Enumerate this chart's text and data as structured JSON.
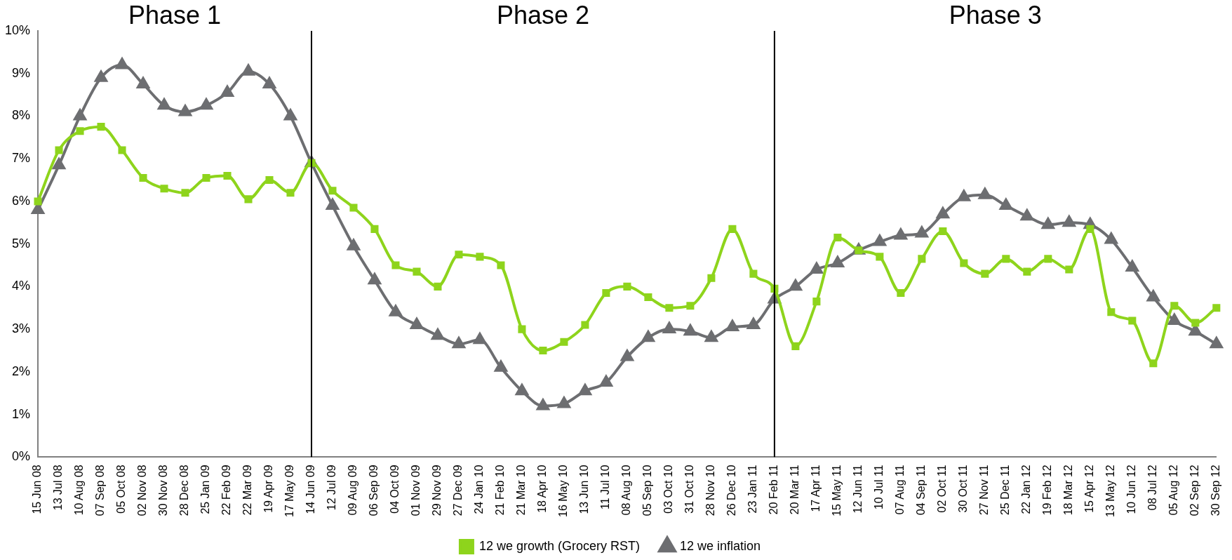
{
  "chart_data": {
    "type": "line",
    "categories": [
      "15 Jun 08",
      "13 Jul 08",
      "10 Aug 08",
      "07 Sep 08",
      "05 Oct 08",
      "02 Nov 08",
      "30 Nov 08",
      "28 Dec 08",
      "25 Jan 09",
      "22 Feb 09",
      "22 Mar 09",
      "19 Apr 09",
      "17 May 09",
      "14 Jun 09",
      "12 Jul 09",
      "09 Aug 09",
      "06 Sep 09",
      "04 Oct 09",
      "01 Nov 09",
      "29 Nov 09",
      "27 Dec 09",
      "24 Jan 10",
      "21 Feb 10",
      "21 Mar 10",
      "18 Apr 10",
      "16 May 10",
      "13 Jun 10",
      "11 Jul 10",
      "08 Aug 10",
      "05 Sep 10",
      "03 Oct 10",
      "31 Oct 10",
      "28 Nov 10",
      "26 Dec 10",
      "23 Jan 11",
      "20 Feb 11",
      "20 Mar 11",
      "17 Apr 11",
      "15 May 11",
      "12 Jun 11",
      "10 Jul 11",
      "07 Aug 11",
      "04 Sep 11",
      "02 Oct 11",
      "30 Oct 11",
      "27 Nov 11",
      "25 Dec 11",
      "22 Jan 12",
      "19 Feb 12",
      "18 Mar 12",
      "15 Apr 12",
      "13 May 12",
      "10 Jun 12",
      "08 Jul 12",
      "05 Aug 12",
      "02 Sep 12",
      "30 Sep 12"
    ],
    "series": [
      {
        "name": "12 we growth (Grocery RST)",
        "color": "#8ed41c",
        "marker": "square",
        "values": [
          6.0,
          7.2,
          7.65,
          7.75,
          7.2,
          6.55,
          6.3,
          6.2,
          6.55,
          6.6,
          6.05,
          6.5,
          6.2,
          6.9,
          6.25,
          5.85,
          5.35,
          4.5,
          4.35,
          4.0,
          4.75,
          4.7,
          4.5,
          3.0,
          2.5,
          2.7,
          3.1,
          3.85,
          4.0,
          3.75,
          3.5,
          3.55,
          4.2,
          5.35,
          4.3,
          3.95,
          2.6,
          3.65,
          5.15,
          4.85,
          4.7,
          3.85,
          4.65,
          5.3,
          4.55,
          4.3,
          4.65,
          4.35,
          4.65,
          4.4,
          5.35,
          3.4,
          3.2,
          2.2,
          3.55,
          3.15,
          3.5
        ]
      },
      {
        "name": "12 we inflation",
        "color": "#6d6e71",
        "marker": "triangle",
        "values": [
          5.8,
          6.85,
          8.0,
          8.9,
          9.2,
          8.75,
          8.25,
          8.1,
          8.25,
          8.55,
          9.05,
          8.75,
          8.0,
          6.9,
          5.9,
          4.95,
          4.15,
          3.4,
          3.1,
          2.85,
          2.65,
          2.75,
          2.1,
          1.55,
          1.2,
          1.25,
          1.55,
          1.75,
          2.35,
          2.8,
          3.0,
          2.95,
          2.8,
          3.05,
          3.1,
          3.7,
          4.0,
          4.4,
          4.55,
          4.85,
          5.05,
          5.2,
          5.25,
          5.7,
          6.1,
          6.15,
          5.9,
          5.65,
          5.45,
          5.5,
          5.45,
          5.1,
          4.45,
          3.75,
          3.2,
          2.95,
          2.65
        ]
      }
    ],
    "ylim": [
      0,
      10
    ],
    "yticks": [
      {
        "value": 0,
        "label": "0%"
      },
      {
        "value": 1,
        "label": "1%"
      },
      {
        "value": 2,
        "label": "2%"
      },
      {
        "value": 3,
        "label": "3%"
      },
      {
        "value": 4,
        "label": "4%"
      },
      {
        "value": 5,
        "label": "5%"
      },
      {
        "value": 6,
        "label": "6%"
      },
      {
        "value": 7,
        "label": "7%"
      },
      {
        "value": 8,
        "label": "8%"
      },
      {
        "value": 9,
        "label": "9%"
      },
      {
        "value": 10,
        "label": "10%"
      }
    ],
    "grid": false,
    "legend": "bottom",
    "ref_lines": [
      {
        "axis": "x",
        "value": "14 Jun 09",
        "color": "#000000"
      },
      {
        "axis": "x",
        "value": "20 Feb 11",
        "color": "#000000"
      }
    ],
    "annotations": [
      "Phase 1",
      "Phase 2",
      "Phase 3"
    ]
  }
}
